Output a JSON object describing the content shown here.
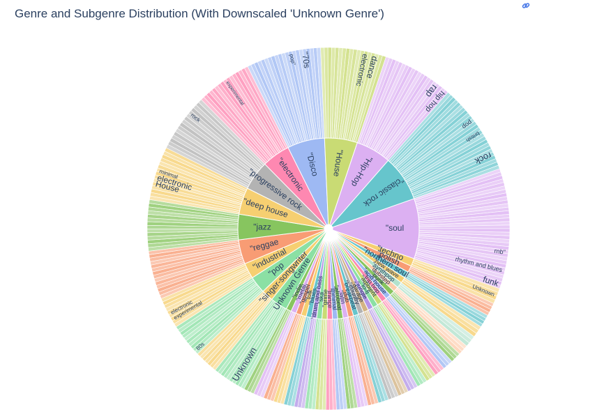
{
  "page": {
    "title": "Genre and Subgenre Distribution (With Downscaled 'Unknown Genre')"
  },
  "toolbar": {
    "icon": "link-icon"
  },
  "chart_data": {
    "type": "sunburst",
    "inner": [
      {
        "label": "\"soul",
        "value": 9.2,
        "color": "#dcb0f2"
      },
      {
        "label": "\"techno",
        "value": 1.2,
        "color": "#f6cf71"
      },
      {
        "label": "\"polish",
        "value": 1.0,
        "color": "#f89c74"
      },
      {
        "label": "\"northern soul",
        "value": 1.0,
        "color": "#66c5cc"
      },
      {
        "label": "\"new wave",
        "value": 0.9,
        "color": "#f6cf71"
      },
      {
        "label": "\"synthpop",
        "value": 0.9,
        "color": "#b3e2cd"
      },
      {
        "label": "\"dubstep",
        "value": 0.8,
        "color": "#fdcdac"
      },
      {
        "label": "\"punk",
        "value": 0.8,
        "color": "#87c55f"
      },
      {
        "label": "\"acid house",
        "value": 0.8,
        "color": "#9eb9f3"
      },
      {
        "label": "\"trip hop",
        "value": 0.8,
        "color": "#fe88b1"
      },
      {
        "label": "\"ambient",
        "value": 0.8,
        "color": "#c9db74"
      },
      {
        "label": "\"lo-fi",
        "value": 0.8,
        "color": "#8be0a4"
      },
      {
        "label": "\"jungle",
        "value": 0.8,
        "color": "#b497e7"
      },
      {
        "label": "\"garage",
        "value": 0.8,
        "color": "#d3b484"
      },
      {
        "label": "\"country",
        "value": 0.8,
        "color": "#b3b3b3"
      },
      {
        "label": "\"breakbeat",
        "value": 0.8,
        "color": "#66c5cc"
      },
      {
        "label": "\"dub",
        "value": 0.8,
        "color": "#f89c74"
      },
      {
        "label": "\"latin",
        "value": 0.8,
        "color": "#dcb0f2"
      },
      {
        "label": "\"afrobeat",
        "value": 0.8,
        "color": "#87c55f"
      },
      {
        "label": "\"minimal",
        "value": 0.8,
        "color": "#9eb9f3"
      },
      {
        "label": "\"trance",
        "value": 0.8,
        "color": "#fe88b1"
      },
      {
        "label": "\"grime",
        "value": 0.8,
        "color": "#c9db74"
      },
      {
        "label": "\"ska",
        "value": 0.8,
        "color": "#8be0a4"
      },
      {
        "label": "\"drum and bass",
        "value": 0.8,
        "color": "#b497e7"
      },
      {
        "label": "\"blues",
        "value": 0.8,
        "color": "#66c5cc"
      },
      {
        "label": "\"folk",
        "value": 0.8,
        "color": "#f6cf71"
      },
      {
        "label": "\"gospel",
        "value": 0.8,
        "color": "#f89c74"
      },
      {
        "label": "\"metal",
        "value": 0.8,
        "color": "#dcb0f2"
      },
      {
        "label": "\"indie",
        "value": 0.8,
        "color": "#87c55f"
      },
      {
        "label": "Unknown Genre",
        "value": 2.6,
        "color": "#8be0a4"
      },
      {
        "label": "\"singer-songwriter",
        "value": 1.8,
        "color": "#f6cf71"
      },
      {
        "label": "\"pop",
        "value": 2.6,
        "color": "#8be0a4"
      },
      {
        "label": "\"industrial",
        "value": 2.4,
        "color": "#f6cf71"
      },
      {
        "label": "\"reggae",
        "value": 3.7,
        "color": "#f89c74"
      },
      {
        "label": "\"jazz",
        "value": 3.9,
        "color": "#87c55f"
      },
      {
        "label": "\"deep house",
        "value": 4.1,
        "color": "#f6cf71"
      },
      {
        "label": "\"progressive rock",
        "value": 4.5,
        "color": "#b3b3b3"
      },
      {
        "label": "\"electronic",
        "value": 4.3,
        "color": "#fe88b1"
      },
      {
        "label": "\"Disco",
        "value": 5.7,
        "color": "#9eb9f3"
      },
      {
        "label": "\"House",
        "value": 5.0,
        "color": "#c9db74"
      },
      {
        "label": "\"Hip-Hop",
        "value": 5.4,
        "color": "#dcb0f2"
      },
      {
        "label": "\"classic rock",
        "value": 7.0,
        "color": "#66c5cc"
      }
    ],
    "outer_labels": [
      {
        "label": "\"70s",
        "parent": "\"Disco",
        "pos": 0.78,
        "size": 12
      },
      {
        "label": "pop\"",
        "parent": "\"Disco",
        "pos": 0.6,
        "size": 8
      },
      {
        "label": "experimental",
        "parent": "\"electronic",
        "pos": 0.55,
        "size": 7
      },
      {
        "label": "dance",
        "parent": "\"House",
        "pos": 0.83,
        "size": 12
      },
      {
        "label": "electronic",
        "parent": "\"House",
        "pos": 0.68,
        "size": 11
      },
      {
        "label": "rap",
        "parent": "\"Hip-Hop",
        "pos": 0.8,
        "size": 13
      },
      {
        "label": "hip hop",
        "parent": "\"Hip-Hop",
        "pos": 0.94,
        "size": 11
      },
      {
        "label": "rock",
        "parent": "\"classic rock",
        "pos": 0.82,
        "size": 13
      },
      {
        "label": "british",
        "parent": "\"classic rock",
        "pos": 0.55,
        "size": 8
      },
      {
        "label": "pop",
        "parent": "\"classic rock",
        "pos": 0.4,
        "size": 9
      },
      {
        "label": "rnb\"",
        "parent": "\"soul",
        "pos": 0.7,
        "size": 9
      },
      {
        "label": "rhythm and blues",
        "parent": "\"soul",
        "pos": 0.85,
        "size": 9
      },
      {
        "label": "funk",
        "parent": "\"soul",
        "pos": 0.97,
        "size": 12
      },
      {
        "label": "Unknown",
        "parent": "\"techno",
        "pos": 0.5,
        "size": 8
      },
      {
        "label": "House",
        "parent": "\"deep house",
        "pos": 0.3,
        "size": 12
      },
      {
        "label": "electronic",
        "parent": "\"deep house",
        "pos": 0.42,
        "size": 12
      },
      {
        "label": "minimal",
        "parent": "\"deep house",
        "pos": 0.55,
        "size": 8
      },
      {
        "label": "rock",
        "parent": "\"progressive rock",
        "pos": 0.7,
        "size": 8
      },
      {
        "label": "electronic",
        "parent": "\"industrial",
        "pos": 0.45,
        "size": 8
      },
      {
        "label": "experimental",
        "parent": "\"industrial",
        "pos": 0.25,
        "size": 8
      },
      {
        "label": "80s",
        "parent": "\"pop",
        "pos": 0.1,
        "size": 8
      },
      {
        "label": "Unknown",
        "parent": "Unknown Genre",
        "pos": 0.35,
        "size": 13
      }
    ]
  }
}
